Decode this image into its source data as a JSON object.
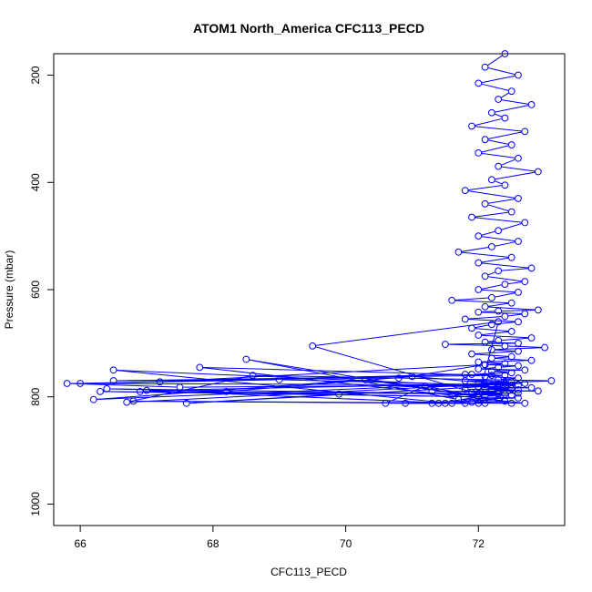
{
  "chart_data": {
    "type": "line",
    "title": "ATOM1 North_America CFC113_PECD",
    "xlabel": "CFC113_PECD",
    "ylabel": "Pressure (mbar)",
    "xlim": [
      65.6,
      73.3
    ],
    "ylim": [
      1040,
      160
    ],
    "y_reversed": true,
    "x_ticks": [
      66,
      68,
      70,
      72
    ],
    "y_ticks": [
      200,
      400,
      600,
      800,
      1000
    ],
    "grid": false,
    "colors": {
      "series": "#0000ff",
      "axes": "#000000"
    },
    "series": [
      {
        "marker": "open-circle",
        "x": [
          72.4,
          72.1,
          72.6,
          72.0,
          72.5,
          72.3,
          72.8,
          72.2,
          72.4,
          71.9,
          72.7,
          72.1,
          72.5,
          72.0,
          72.6,
          72.3,
          72.9,
          72.2,
          72.4,
          71.8,
          72.6,
          72.1,
          72.5,
          71.9,
          72.7,
          72.3,
          72.0,
          72.6,
          72.2,
          71.7,
          72.5,
          72.0,
          72.8,
          72.3,
          72.1,
          72.7,
          72.4,
          72.0,
          72.6,
          72.2,
          71.6,
          72.5,
          72.1,
          72.9,
          72.3,
          72.0,
          72.7,
          72.4,
          71.8,
          72.6,
          72.2,
          71.9,
          72.5,
          72.0,
          72.8,
          72.3,
          72.1,
          72.6,
          71.5,
          72.4,
          73.0,
          72.2,
          72.6,
          71.9,
          72.5,
          72.2,
          72.8,
          72.0,
          72.4,
          72.1,
          72.6,
          72.3,
          72.0,
          72.7,
          72.2,
          72.5,
          71.9,
          72.4,
          72.1,
          72.6,
          72.3,
          71.8,
          72.5,
          72.0,
          72.7,
          72.3,
          72.1,
          72.6,
          72.2,
          71.2,
          72.4,
          72.0,
          72.8,
          72.1,
          72.5,
          71.8,
          72.6,
          72.2,
          72.9,
          71.3,
          72.3,
          71.9,
          72.6,
          72.0,
          72.4,
          71.6,
          72.5,
          72.1,
          69.5,
          72.3,
          72.0,
          72.6,
          71.7,
          68.5,
          72.4,
          71.9,
          72.7,
          67.8,
          72.2,
          66.5,
          70.8,
          72.1,
          67.2,
          71.8,
          66.0,
          69.0,
          72.2,
          67.5,
          65.8,
          72.5,
          71.0,
          68.2,
          66.4,
          72.3,
          66.9,
          72.0,
          70.3,
          66.2,
          73.1,
          68.6,
          66.7,
          72.4,
          67.0,
          71.6,
          66.5,
          72.2,
          67.6,
          69.9,
          66.3,
          72.0,
          71.4,
          66.8,
          72.5,
          71.2,
          70.6,
          72.1,
          71.8,
          71.5,
          72.3,
          70.9,
          72.0,
          71.3
        ],
        "y": [
          160,
          185,
          200,
          215,
          230,
          245,
          255,
          270,
          280,
          295,
          305,
          320,
          330,
          345,
          355,
          370,
          380,
          395,
          405,
          415,
          430,
          440,
          455,
          465,
          475,
          490,
          500,
          510,
          520,
          530,
          540,
          550,
          560,
          565,
          575,
          585,
          590,
          600,
          605,
          615,
          620,
          625,
          632,
          638,
          640,
          642,
          645,
          650,
          655,
          660,
          665,
          672,
          678,
          685,
          690,
          695,
          698,
          700,
          702,
          705,
          708,
          712,
          715,
          720,
          725,
          728,
          732,
          735,
          738,
          740,
          742,
          745,
          748,
          750,
          752,
          755,
          758,
          760,
          762,
          765,
          768,
          770,
          772,
          774,
          775,
          776,
          777,
          778,
          779,
          780,
          781,
          782,
          783,
          784,
          785,
          786,
          787,
          788,
          789,
          790,
          791,
          792,
          793,
          794,
          795,
          796,
          797,
          798,
          705,
          660,
          800,
          802,
          805,
          730,
          808,
          810,
          812,
          745,
          760,
          770,
          765,
          740,
          772,
          758,
          775,
          768,
          778,
          782,
          775,
          778,
          762,
          790,
          785,
          795,
          790,
          800,
          768,
          805,
          770,
          760,
          810,
          775,
          788,
          812,
          750,
          780,
          812,
          795,
          790,
          800,
          812,
          808,
          812,
          780,
          812,
          812,
          812,
          812,
          805,
          812,
          812,
          812
        ]
      }
    ]
  }
}
